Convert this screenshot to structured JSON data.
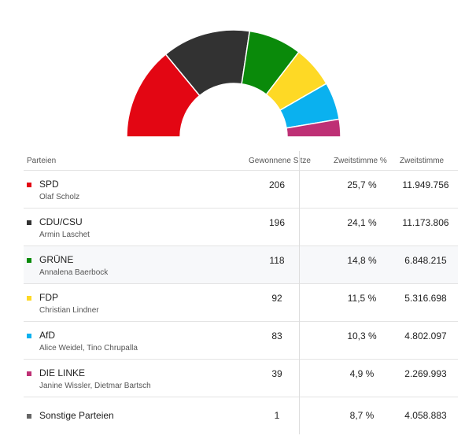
{
  "table": {
    "headers": {
      "party": "Parteien",
      "seats": "Gewonnene Sitze",
      "pct": "Zweitstimme %",
      "votes": "Zweitstimme"
    },
    "rows": [
      {
        "party": "SPD",
        "leaders": "Olaf Scholz",
        "seats": "206",
        "pct": "25,7 %",
        "votes": "11.949.756",
        "color": "#e30613"
      },
      {
        "party": "CDU/CSU",
        "leaders": "Armin Laschet",
        "seats": "196",
        "pct": "24,1 %",
        "votes": "11.173.806",
        "color": "#323232"
      },
      {
        "party": "GRÜNE",
        "leaders": "Annalena Baerbock",
        "seats": "118",
        "pct": "14,8 %",
        "votes": "6.848.215",
        "color": "#0a8a0a"
      },
      {
        "party": "FDP",
        "leaders": "Christian Lindner",
        "seats": "92",
        "pct": "11,5 %",
        "votes": "5.316.698",
        "color": "#fed925"
      },
      {
        "party": "AfD",
        "leaders": "Alice Weidel, Tino Chrupalla",
        "seats": "83",
        "pct": "10,3 %",
        "votes": "4.802.097",
        "color": "#0ab1ef"
      },
      {
        "party": "DIE LINKE",
        "leaders": "Janine Wissler, Dietmar Bartsch",
        "seats": "39",
        "pct": "4,9 %",
        "votes": "2.269.993",
        "color": "#be3075"
      },
      {
        "party": "Sonstige Parteien",
        "leaders": "",
        "seats": "1",
        "pct": "8,7 %",
        "votes": "4.058.883",
        "color": "#666666"
      }
    ]
  },
  "chart_data": {
    "type": "pie",
    "subtype": "half-donut",
    "categories": [
      "SPD",
      "CDU/CSU",
      "GRÜNE",
      "FDP",
      "AfD",
      "DIE LINKE"
    ],
    "values": [
      206,
      196,
      118,
      92,
      83,
      39
    ],
    "colors": [
      "#e30613",
      "#323232",
      "#0a8a0a",
      "#fed925",
      "#0ab1ef",
      "#be3075"
    ]
  }
}
